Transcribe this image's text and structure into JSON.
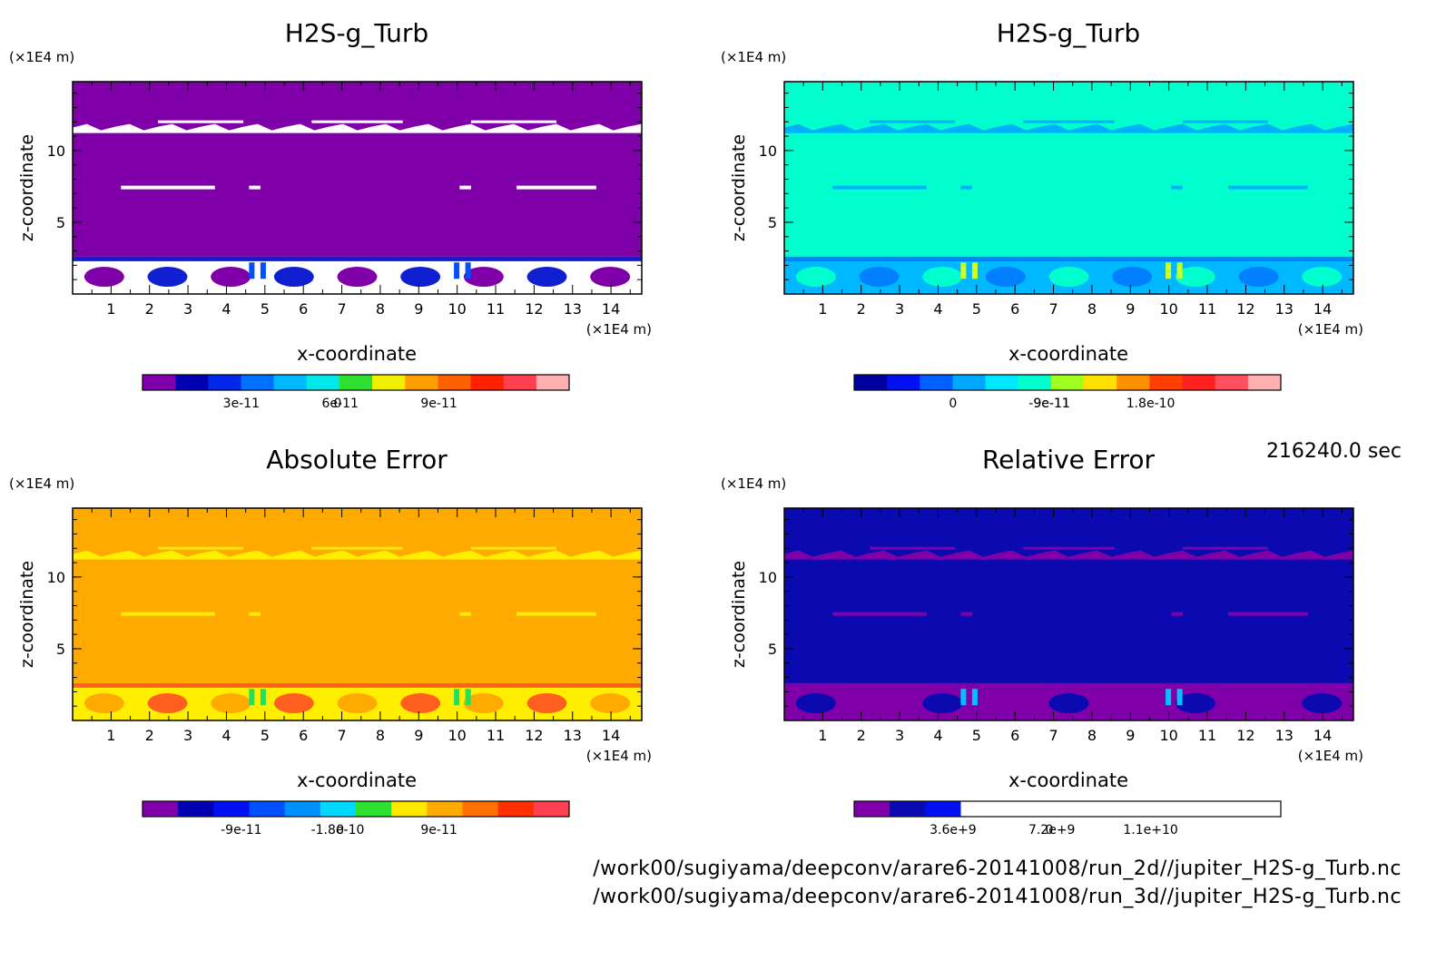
{
  "timestamp": "216240.0 sec",
  "files": [
    "/work00/sugiyama/deepconv/arare6-20141008/run_2d//jupiter_H2S-g_Turb.nc",
    "/work00/sugiyama/deepconv/arare6-20141008/run_3d//jupiter_H2S-g_Turb.nc"
  ],
  "chart_data": [
    {
      "type": "heatmap",
      "title": "H2S-g_Turb",
      "xlabel": "x-coordinate",
      "ylabel": "z-coordinate",
      "x_unit": "(×1E4 m)",
      "z_unit": "(×1E4 m)",
      "xlim": [
        0,
        14.8
      ],
      "zlim": [
        0,
        14.8
      ],
      "x_ticks": [
        "1",
        "2",
        "3",
        "4",
        "5",
        "6",
        "7",
        "8",
        "9",
        "10",
        "11",
        "12",
        "13",
        "14"
      ],
      "z_ticks": [
        "5",
        "10"
      ],
      "background": "#7f00a8",
      "colorbar": {
        "colors": [
          "#7f00a8",
          "#0000b0",
          "#0028e8",
          "#0070ff",
          "#00b8ff",
          "#00e8e8",
          "#30e030",
          "#f0f000",
          "#ffa000",
          "#ff6000",
          "#ff2000",
          "#ff4050",
          "#ffb0b0"
        ],
        "labels": [
          "0",
          "3e-11",
          "6e-11",
          "9e-11"
        ]
      },
      "band_colors": {
        "main": "#7f00a8",
        "streak": "#ffffff",
        "low1": "#ffffff",
        "low2": "#1020d0",
        "low3": "#0050ff"
      }
    },
    {
      "type": "heatmap",
      "title": "H2S-g_Turb",
      "xlabel": "x-coordinate",
      "ylabel": "z-coordinate",
      "x_unit": "(×1E4 m)",
      "z_unit": "(×1E4 m)",
      "xlim": [
        0,
        14.8
      ],
      "zlim": [
        0,
        14.8
      ],
      "x_ticks": [
        "1",
        "2",
        "3",
        "4",
        "5",
        "6",
        "7",
        "8",
        "9",
        "10",
        "11",
        "12",
        "13",
        "14"
      ],
      "z_ticks": [
        "5",
        "10"
      ],
      "background": "#00ffcc",
      "colorbar": {
        "colors": [
          "#0000a0",
          "#0010f0",
          "#0060ff",
          "#00a8ff",
          "#00e8ff",
          "#00ffcc",
          "#a0ff20",
          "#ffe000",
          "#ff9000",
          "#ff4000",
          "#ff2020",
          "#ff5060",
          "#ffb0b0"
        ],
        "labels": [
          "-9e-11",
          "0",
          "9e-11",
          "1.8e-10"
        ]
      },
      "band_colors": {
        "main": "#00ffcc",
        "streak": "#00b0ff",
        "low1": "#00b8ff",
        "low2": "#0080ff",
        "low3": "#d0ff20"
      }
    },
    {
      "type": "heatmap",
      "title": "Absolute Error",
      "xlabel": "x-coordinate",
      "ylabel": "z-coordinate",
      "x_unit": "(×1E4 m)",
      "z_unit": "(×1E4 m)",
      "xlim": [
        0,
        14.8
      ],
      "zlim": [
        0,
        14.8
      ],
      "x_ticks": [
        "1",
        "2",
        "3",
        "4",
        "5",
        "6",
        "7",
        "8",
        "9",
        "10",
        "11",
        "12",
        "13",
        "14"
      ],
      "z_ticks": [
        "5",
        "10"
      ],
      "background": "#ffaa00",
      "colorbar": {
        "colors": [
          "#7f00a8",
          "#0000b0",
          "#0010f0",
          "#0050ff",
          "#0090ff",
          "#00d8ff",
          "#30e030",
          "#ffe800",
          "#ffaa00",
          "#ff7000",
          "#ff3000",
          "#ff4050"
        ],
        "labels": [
          "-1.8e-10",
          "-9e-11",
          "0",
          "9e-11"
        ]
      },
      "band_colors": {
        "main": "#ffaa00",
        "streak": "#ffee00",
        "low1": "#ffee00",
        "low2": "#ff6020",
        "low3": "#20e060"
      }
    },
    {
      "type": "heatmap",
      "title": "Relative Error",
      "xlabel": "x-coordinate",
      "ylabel": "z-coordinate",
      "x_unit": "(×1E4 m)",
      "z_unit": "(×1E4 m)",
      "xlim": [
        0,
        14.8
      ],
      "zlim": [
        0,
        14.8
      ],
      "x_ticks": [
        "1",
        "2",
        "3",
        "4",
        "5",
        "6",
        "7",
        "8",
        "9",
        "10",
        "11",
        "12",
        "13",
        "14"
      ],
      "z_ticks": [
        "5",
        "10"
      ],
      "background": "#0a0ab0",
      "colorbar": {
        "colors": [
          "#7f00a8",
          "#0a0ab0",
          "#0010f0",
          "#ffffff",
          "#ffffff",
          "#ffffff",
          "#ffffff",
          "#ffffff",
          "#ffffff",
          "#ffffff",
          "#ffffff",
          "#ffffff"
        ],
        "labels": [
          "0",
          "3.6e+9",
          "7.2e+9",
          "1.1e+10"
        ]
      },
      "band_colors": {
        "main": "#0a0ab0",
        "streak": "#7f00a8",
        "low1": "#7f00a8",
        "low2": "#7f00a8",
        "low3": "#00c0ff"
      }
    }
  ]
}
